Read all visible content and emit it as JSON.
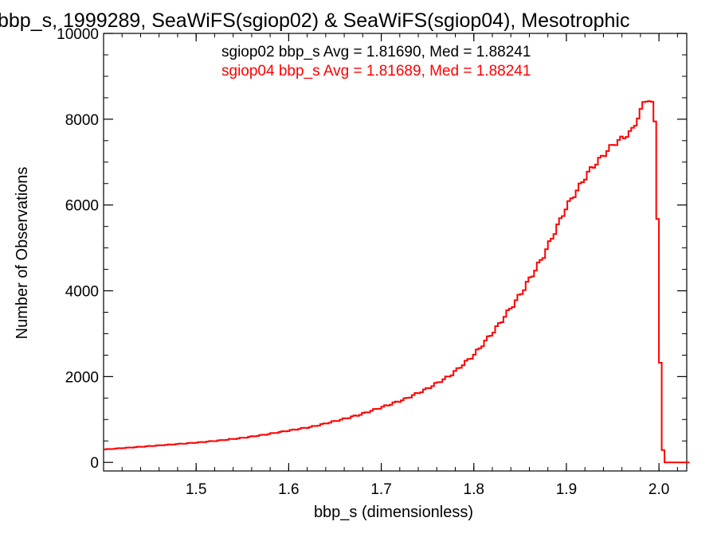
{
  "chart_data": {
    "type": "line",
    "title": "bbp_s, 1999289, SeaWiFS(sgiop02) & SeaWiFS(sgiop04), Mesotrophic",
    "xlabel": "bbp_s (dimensionless)",
    "ylabel": "Number of Observations",
    "xlim": [
      1.4,
      2.03
    ],
    "ylim": [
      -200,
      10000
    ],
    "xticks": [
      "1.5",
      "1.6",
      "1.7",
      "1.8",
      "1.9",
      "2.0"
    ],
    "yticks": [
      "0",
      "2000",
      "4000",
      "6000",
      "8000",
      "10000"
    ],
    "grid": false,
    "annotations": [
      {
        "text": "sgiop02 bbp_s Avg = 1.81690, Med = 1.88241",
        "color": "#000000"
      },
      {
        "text": "sgiop04 bbp_s Avg = 1.81689, Med = 1.88241",
        "color": "#ff0000"
      }
    ],
    "series": [
      {
        "name": "sgiop04",
        "color": "#ff0000",
        "style": "step",
        "x": [
          1.4,
          1.425,
          1.45,
          1.475,
          1.5,
          1.525,
          1.55,
          1.575,
          1.6,
          1.625,
          1.65,
          1.675,
          1.7,
          1.725,
          1.75,
          1.775,
          1.8,
          1.825,
          1.85,
          1.875,
          1.9,
          1.925,
          1.95,
          1.97,
          1.98,
          1.985,
          1.99,
          1.995,
          1.997,
          1.999,
          2.002,
          2.005,
          2.03
        ],
        "values": [
          300,
          340,
          380,
          420,
          460,
          510,
          570,
          650,
          740,
          830,
          960,
          1100,
          1280,
          1470,
          1720,
          2030,
          2500,
          3150,
          3900,
          4800,
          5950,
          6800,
          7400,
          7700,
          8150,
          8500,
          8400,
          8300,
          7000,
          5300,
          1700,
          0,
          0
        ]
      }
    ]
  }
}
